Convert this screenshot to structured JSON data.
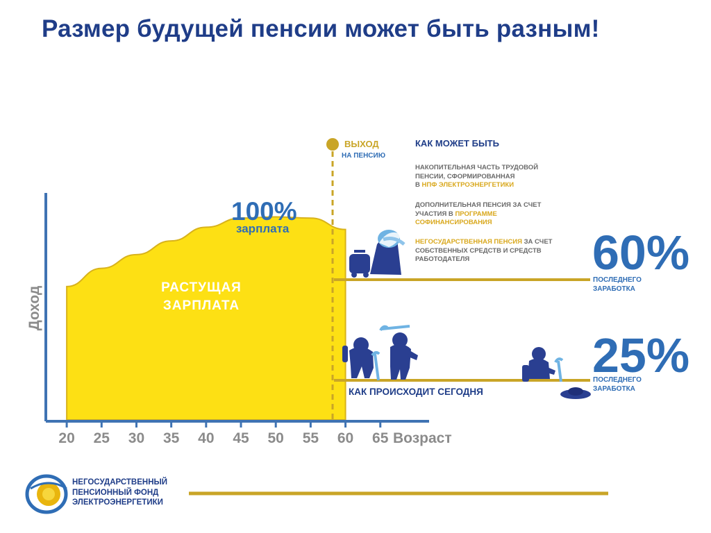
{
  "title": "Размер будущей пенсии может быть разным!",
  "retirement": {
    "label_main": "ВЫХОД",
    "label_sub": "НА ПЕНСИЮ"
  },
  "salary_peak": {
    "percent": "100%",
    "label": "зарплата"
  },
  "growing_salary": {
    "line1": "РАСТУЩАЯ",
    "line2": "ЗАРПЛАТА"
  },
  "scenario_possible": {
    "heading": "КАК МОЖЕТ БЫТЬ",
    "items": [
      {
        "line1": "НАКОПИТЕЛЬНАЯ ЧАСТЬ ТРУДОВОЙ",
        "line2": "ПЕНСИИ, СФОРМИРОВАННАЯ",
        "line3_prefix": "В ",
        "line3_highlight": "НПФ ЭЛЕКТРОЭНЕРГЕТИКИ"
      },
      {
        "line1": "ДОПОЛНИТЕЛЬНАЯ ПЕНСИЯ ЗА СЧЕТ",
        "line2_prefix": "УЧАСТИЯ В ",
        "line2_highlight": "ПРОГРАММЕ",
        "line3_highlight": "СОФИНАНСИРОВАНИЯ"
      },
      {
        "line1_highlight": "НЕГОСУДАРСТВЕННАЯ ПЕНСИЯ",
        "line1_suffix": " ЗА СЧЕТ",
        "line2": "СОБСТВЕННЫХ  СРЕДСТВ И СРЕДСТВ",
        "line3": "РАБОТОДАТЕЛЯ"
      }
    ],
    "percent": "60%",
    "percent_label_line1": "ПОСЛЕДНЕГО",
    "percent_label_line2": "ЗАРАБОТКА"
  },
  "scenario_today": {
    "heading": "КАК ПРОИСХОДИТ СЕГОДНЯ",
    "percent": "25%",
    "percent_label_line1": "ПОСЛЕДНЕГО",
    "percent_label_line2": "ЗАРАБОТКА"
  },
  "axis": {
    "ylabel": "Доход",
    "xlabel": "Возраст",
    "ticks": [
      "20",
      "25",
      "30",
      "35",
      "40",
      "45",
      "50",
      "55",
      "60",
      "65"
    ]
  },
  "chart_data": {
    "type": "area",
    "x": [
      20,
      25,
      30,
      35,
      40,
      45,
      50,
      55,
      60
    ],
    "series": [
      {
        "values": [
          59,
          67,
          73,
          79,
          85,
          89,
          89.5,
          89,
          84
        ]
      }
    ],
    "retirement_age": 60,
    "levels": {
      "possible": 60,
      "today": 25
    },
    "ylim": [
      0,
      100
    ],
    "xlim": [
      17,
      72
    ]
  },
  "logo": {
    "line1": "НЕГОСУДАРСТВЕННЫЙ",
    "line2": "ПЕНСИОННЫЙ ФОНД",
    "line3": "ЭЛЕКТРОЭНЕРГЕТИКИ"
  },
  "colors": {
    "title_blue": "#1f3d88",
    "accent_blue": "#2f6db5",
    "gold": "#c9a527",
    "yellow_fill": "#fde014",
    "axis_blue": "#3f73b3",
    "gray_text": "#8b8b8b"
  },
  "icons": [
    "retiree-with-suitcase-icon",
    "elderly-couple-with-canes-icon",
    "seated-beggar-icon",
    "begging-hat-icon",
    "logo-sun-icon"
  ]
}
